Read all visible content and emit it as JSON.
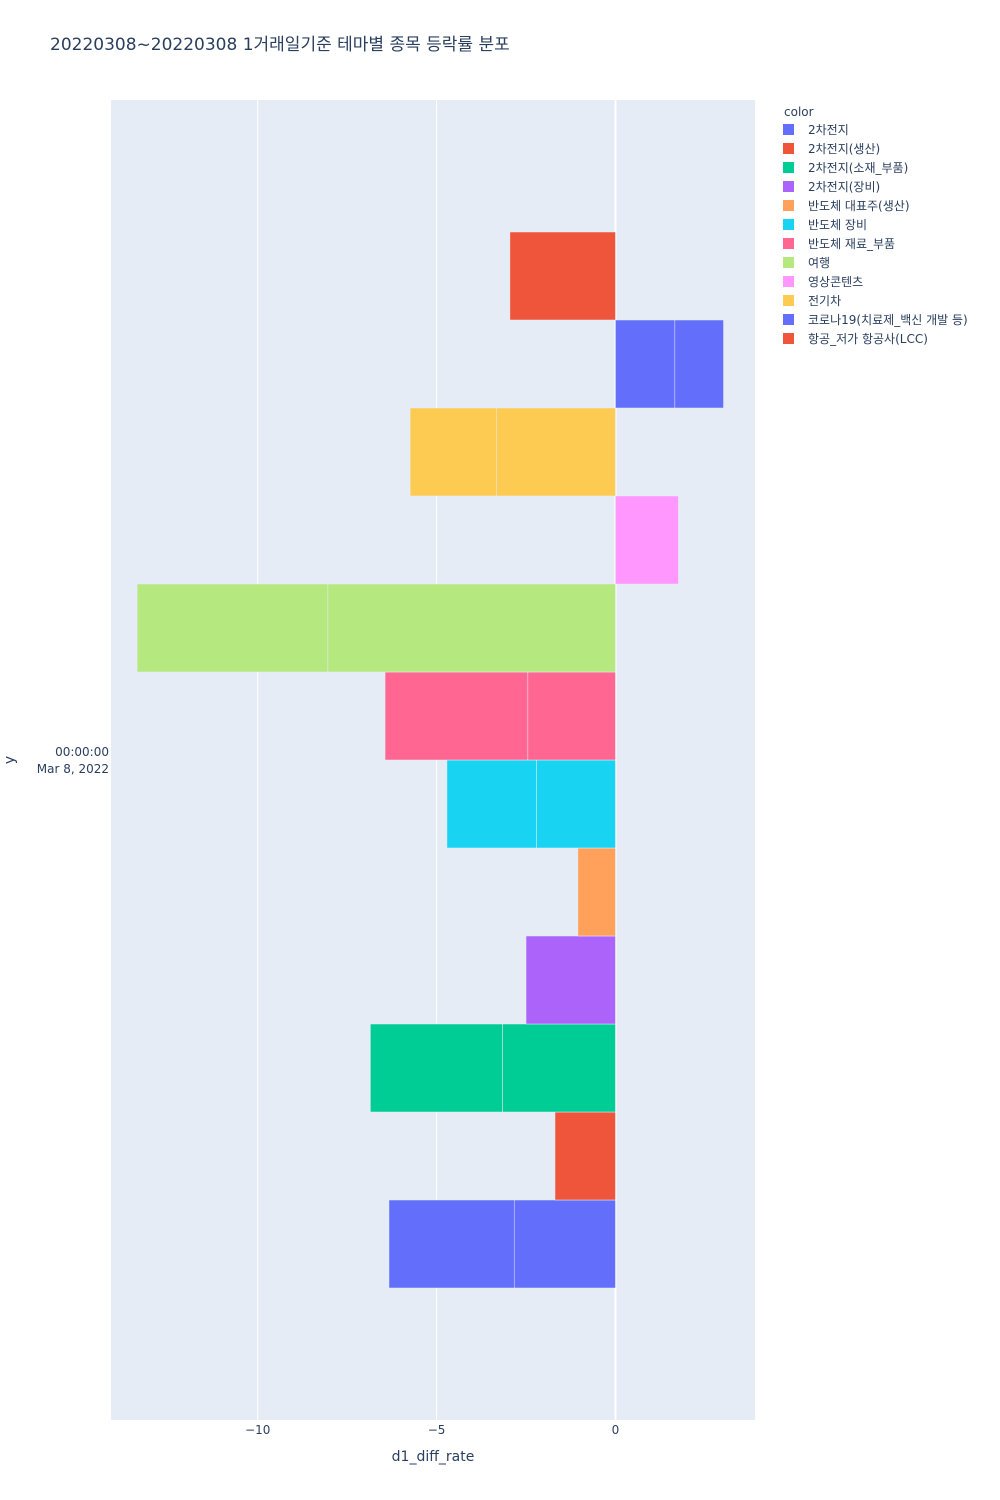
{
  "chart_data": {
    "type": "bar",
    "orientation": "horizontal",
    "barmode": "relative",
    "title": "20220308~20220308 1거래일기준 테마별 종목 등락률 분포",
    "xlabel": "d1_diff_rate",
    "ylabel": "y",
    "y_category_lines": [
      "00:00:00",
      "Mar 8, 2022"
    ],
    "xlim": [
      -14.1,
      3.9
    ],
    "xticks": [
      -10,
      -5,
      0
    ],
    "xtick_labels": [
      "−10",
      "−5",
      "0"
    ],
    "grid": true,
    "legend_title": "color",
    "legend_position": "top-right",
    "series": [
      {
        "name": "2차전지",
        "color": "#636efa",
        "values": [
          -2.83,
          -3.5
        ]
      },
      {
        "name": "2차전지(생산)",
        "color": "#EF553B",
        "values": [
          -1.69
        ]
      },
      {
        "name": "2차전지(소재_부품)",
        "color": "#00cc96",
        "values": [
          -3.16,
          -3.69
        ]
      },
      {
        "name": "2차전지(장비)",
        "color": "#ab63fa",
        "values": [
          -2.5
        ]
      },
      {
        "name": "반도체 대표주(생산)",
        "color": "#FFA15A",
        "values": [
          -1.05
        ]
      },
      {
        "name": "반도체 장비",
        "color": "#19d3f3",
        "values": [
          -2.21,
          -2.5
        ]
      },
      {
        "name": "반도체 재료_부품",
        "color": "#FF6692",
        "values": [
          -2.45,
          -3.99
        ]
      },
      {
        "name": "여행",
        "color": "#B6E880",
        "values": [
          -8.04,
          -5.33
        ]
      },
      {
        "name": "영상콘텐츠",
        "color": "#FF97FF",
        "values": [
          1.76
        ]
      },
      {
        "name": "전기차",
        "color": "#FECB52",
        "values": [
          -3.32,
          -2.42
        ]
      },
      {
        "name": "코로나19(치료제_백신 개발 등)",
        "color": "#636efa",
        "values": [
          1.66,
          1.36
        ]
      },
      {
        "name": "항공_저가 항공사(LCC)",
        "color": "#EF553B",
        "values": [
          -2.95
        ]
      }
    ]
  }
}
